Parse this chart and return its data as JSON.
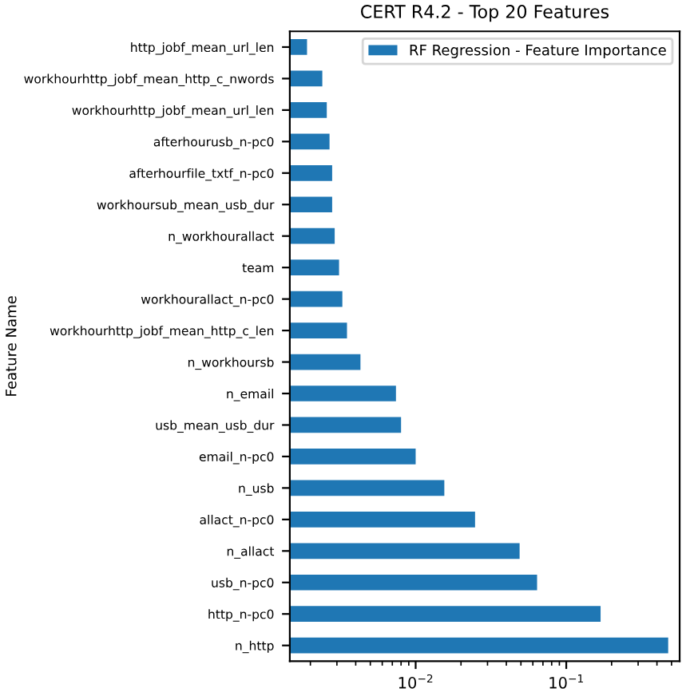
{
  "chart_data": {
    "type": "bar",
    "orientation": "horizontal",
    "title": "CERT R4.2 - Top 20 Features",
    "ylabel": "Feature Name",
    "categories": [
      "http_jobf_mean_url_len",
      "workhourhttp_jobf_mean_http_c_nwords",
      "workhourhttp_jobf_mean_url_len",
      "afterhourusb_n-pc0",
      "afterhourfile_txtf_n-pc0",
      "workhoursub_mean_usb_dur",
      "n_workhourallact",
      "team",
      "workhourallact_n-pc0",
      "workhourhttp_jobf_mean_http_c_len",
      "n_workhoursb",
      "n_email",
      "usb_mean_usb_dur",
      "email_n-pc0",
      "n_usb",
      "allact_n-pc0",
      "n_allact",
      "usb_n-pc0",
      "http_n-pc0",
      "n_http"
    ],
    "series": [
      {
        "name": "RF Regression - Feature Importance",
        "color": "#1f77b4",
        "values": [
          0.0019,
          0.0024,
          0.00257,
          0.00268,
          0.00279,
          0.00279,
          0.0029,
          0.0031,
          0.00326,
          0.0035,
          0.0043,
          0.0074,
          0.008,
          0.01,
          0.0155,
          0.0248,
          0.049,
          0.064,
          0.169,
          0.475
        ]
      }
    ],
    "log": "x",
    "xlim": [
      0.00146,
      0.566
    ],
    "xticks": [
      {
        "value": 0.01,
        "label": "10$^{−2}$"
      },
      {
        "value": 0.1,
        "label": "10$^{−1}$"
      }
    ],
    "legend": "top right"
  }
}
